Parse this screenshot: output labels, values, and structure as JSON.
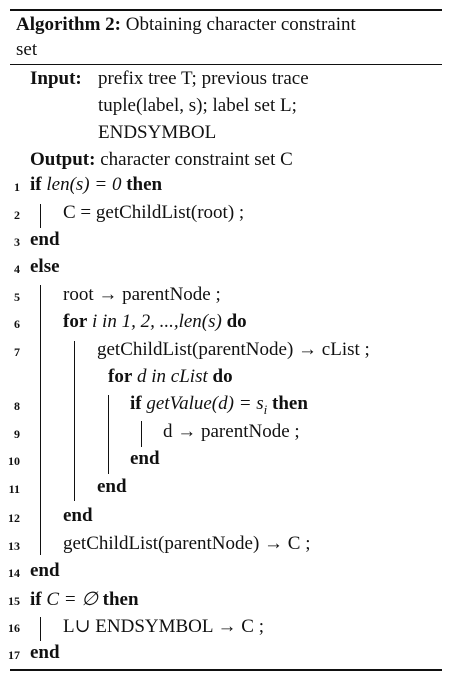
{
  "algorithm": {
    "label": "Algorithm 2:",
    "title_line1": "Obtaining character constraint",
    "title_line2": "set",
    "input_label": "Input:",
    "input_lines": [
      "prefix tree T; previous trace",
      "tuple(label, s); label set L;",
      "ENDSYMBOL"
    ],
    "output_label": "Output:",
    "output_text": "character constraint set C"
  },
  "lines": [
    {
      "num": "1",
      "kw1": "if",
      "text": "len(s) = 0",
      "kw2": "then"
    },
    {
      "num": "2",
      "text": "C = getChildList(root) ;"
    },
    {
      "num": "3",
      "kw1": "end"
    },
    {
      "num": "4",
      "kw1": "else"
    },
    {
      "num": "5",
      "text": "root → parentNode ;"
    },
    {
      "num": "6",
      "kw1": "for",
      "text": "i in 1, 2, ...,len(s)",
      "kw2": "do"
    },
    {
      "num": "7",
      "text": "getChildList(parentNode) → cList ;"
    },
    {
      "num": "",
      "kw1": "for",
      "text": "d in cList",
      "kw2": "do"
    },
    {
      "num": "8",
      "kw1": "if",
      "text": "getValue(d) = s",
      "sub": "i",
      "kw2": "then"
    },
    {
      "num": "9",
      "text": "d → parentNode ;"
    },
    {
      "num": "10",
      "kw1": "end"
    },
    {
      "num": "11",
      "kw1": "end"
    },
    {
      "num": "12",
      "kw1": "end"
    },
    {
      "num": "13",
      "text": "getChildList(parentNode) → C ;"
    },
    {
      "num": "14",
      "kw1": "end"
    },
    {
      "num": "15",
      "kw1": "if",
      "text": "C = ∅",
      "kw2": "then"
    },
    {
      "num": "16",
      "text": "L∪ ENDSYMBOL → C ;"
    },
    {
      "num": "17",
      "kw1": "end"
    }
  ]
}
